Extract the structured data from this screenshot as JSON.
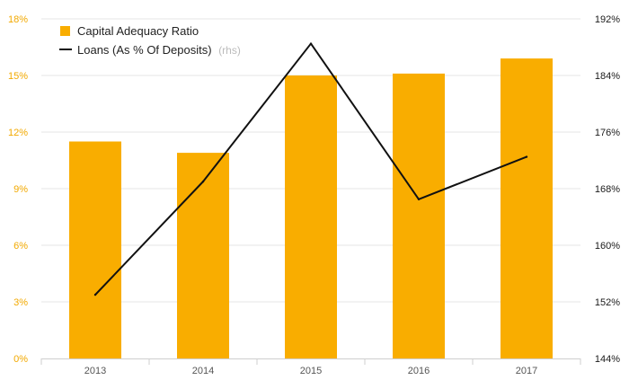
{
  "chart_data": {
    "type": "bar+line",
    "categories": [
      "2013",
      "2014",
      "2015",
      "2016",
      "2017"
    ],
    "series": [
      {
        "name": "Capital Adequacy Ratio",
        "type": "bar",
        "axis": "left",
        "values": [
          11.5,
          10.9,
          15.0,
          15.1,
          15.9
        ],
        "color": "#f9ad00"
      },
      {
        "name": "Loans (As % Of Deposits)",
        "type": "line",
        "axis": "right",
        "legend_suffix": "(rhs)",
        "values": [
          153.0,
          169.0,
          188.5,
          166.5,
          172.5
        ],
        "color": "#111111"
      }
    ],
    "left_axis": {
      "ticks": [
        "0%",
        "3%",
        "6%",
        "9%",
        "12%",
        "15%",
        "18%"
      ],
      "min": 0,
      "max": 18,
      "color": "#f2a900"
    },
    "right_axis": {
      "ticks": [
        "144%",
        "152%",
        "160%",
        "168%",
        "176%",
        "184%",
        "192%"
      ],
      "min": 144,
      "max": 192,
      "color": "#1a1a1a"
    },
    "grid": true,
    "legend_position": "top-left"
  }
}
